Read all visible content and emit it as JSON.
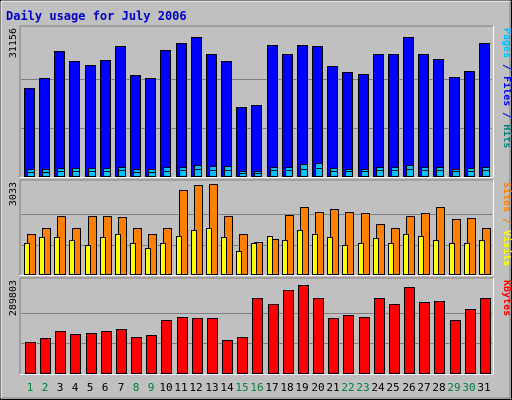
{
  "title": "Daily usage for July 2006",
  "colors": {
    "page_bg": "#c0c0c0",
    "plot_bg": "#c0c0c0",
    "grid": "#808080",
    "title": "#0000cc",
    "pages": "#00c0ff",
    "files": "#0000ff",
    "hits": "#008080",
    "sites": "#ff8000",
    "visits": "#ffff00",
    "kbytes": "#ff0000",
    "weekday_label": "#000000",
    "weekend_label": "#008040"
  },
  "chart_data": {
    "type": "bar",
    "categories": [
      "1",
      "2",
      "3",
      "4",
      "5",
      "6",
      "7",
      "8",
      "9",
      "10",
      "11",
      "12",
      "13",
      "14",
      "15",
      "16",
      "17",
      "18",
      "19",
      "20",
      "21",
      "22",
      "23",
      "24",
      "25",
      "26",
      "27",
      "28",
      "29",
      "30",
      "31"
    ],
    "weekend_days": [
      "1",
      "2",
      "8",
      "9",
      "15",
      "16",
      "22",
      "23",
      "29",
      "30"
    ],
    "panels": [
      {
        "id": "hits",
        "max_label": "31156",
        "ylim": [
          0,
          31156
        ],
        "legend": [
          {
            "text": "Pages",
            "color_key": "pages"
          },
          {
            "text": " / ",
            "color_key": "files"
          },
          {
            "text": "Files",
            "color_key": "files"
          },
          {
            "text": " / ",
            "color_key": "files"
          },
          {
            "text": "Hits",
            "color_key": "hits"
          }
        ],
        "series": [
          {
            "name": "Hits",
            "color_key": "files",
            "values": [
              18800,
              20900,
              26700,
              24600,
              23700,
              24900,
              27700,
              21600,
              20900,
              26900,
              28300,
              29600,
              26000,
              24500,
              14800,
              15200,
              27900,
              26000,
              28000,
              27800,
              23500,
              22300,
              21900,
              26000,
              26000,
              29600,
              26100,
              25100,
              21300,
              22500,
              28400
            ]
          },
          {
            "name": "Files",
            "color_key": "pages",
            "values": [
              1700,
              1700,
              2000,
              2000,
              1900,
              1900,
              2200,
              1700,
              1800,
              2100,
              2200,
              2600,
              2300,
              2300,
              1300,
              1300,
              2200,
              2200,
              2700,
              3000,
              2000,
              1800,
              1800,
              2200,
              2200,
              2600,
              2200,
              2100,
              1800,
              1900,
              2200
            ]
          },
          {
            "name": "Pages",
            "color_key": "pages",
            "values": [
              1100,
              1100,
              1300,
              1300,
              1300,
              1300,
              1400,
              1100,
              1100,
              1300,
              1400,
              1700,
              1500,
              1500,
              900,
              900,
              1400,
              1400,
              1800,
              2000,
              1300,
              1200,
              1200,
              1400,
              1400,
              1700,
              1400,
              1400,
              1200,
              1200,
              1400
            ]
          }
        ]
      },
      {
        "id": "visits",
        "max_label": "3033",
        "ylim": [
          0,
          3033
        ],
        "legend": [
          {
            "text": "Sites",
            "color_key": "sites"
          },
          {
            "text": " / ",
            "color_key": "sites"
          },
          {
            "text": "Visits",
            "color_key": "visits"
          }
        ],
        "series": [
          {
            "name": "Sites",
            "color_key": "sites",
            "values": [
              1380,
              1550,
              1950,
              1550,
              1950,
              1950,
              1930,
              1550,
              1380,
              1550,
              2820,
              3010,
              3033,
              1950,
              1380,
              1100,
              1200,
              2000,
              2250,
              2100,
              2200,
              2100,
              2050,
              1690,
              1550,
              1950,
              2050,
              2250,
              1860,
              1900,
              1550
            ]
          },
          {
            "name": "Visits",
            "color_key": "visits",
            "values": [
              1050,
              1250,
              1250,
              1180,
              1000,
              1250,
              1350,
              1050,
              900,
              1050,
              1300,
              1500,
              1550,
              1250,
              800,
              1050,
              1290,
              1180,
              1510,
              1360,
              1270,
              1000,
              1050,
              1230,
              1050,
              1380,
              1290,
              1150,
              1050,
              1050,
              1150
            ]
          }
        ]
      },
      {
        "id": "kbytes",
        "max_label": "289803",
        "ylim": [
          0,
          289803
        ],
        "legend": [
          {
            "text": "KBytes",
            "color_key": "kbytes"
          }
        ],
        "series": [
          {
            "name": "KBytes",
            "color_key": "kbytes",
            "values": [
              101000,
              112000,
              135000,
              125000,
              130000,
              136000,
              143000,
              115000,
              124000,
              170000,
              181000,
              175000,
              175000,
              106000,
              116000,
              240000,
              220000,
              265000,
              280000,
              240000,
              175000,
              185000,
              180000,
              238000,
              220000,
              275000,
              228000,
              231000,
              170000,
              206000,
              240000
            ]
          }
        ]
      }
    ]
  }
}
